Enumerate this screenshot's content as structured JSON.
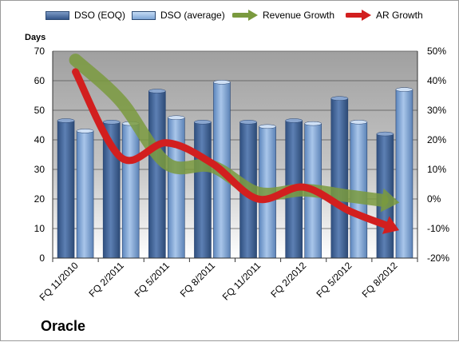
{
  "legend": {
    "dso_eoq": "DSO (EOQ)",
    "dso_avg": "DSO (average)",
    "revenue_growth": "Revenue Growth",
    "ar_growth": "AR Growth"
  },
  "axis_left_title": "Days",
  "company_label": "Oracle",
  "colors": {
    "bar_eoq": "#4a6fa5",
    "bar_avg": "#8fb3e0",
    "revenue": "#7a9a3e",
    "ar": "#d21f1f",
    "plot_top": "#a8a8a8",
    "plot_bottom": "#ffffff"
  },
  "chart_data": {
    "type": "bar",
    "categories": [
      "FQ 11/2010",
      "FQ 2/2011",
      "FQ 5/2011",
      "FQ 8/2011",
      "FQ 11/2011",
      "FQ 2/2012",
      "FQ 5/2012",
      "FQ 8/2012"
    ],
    "series": [
      {
        "name": "DSO (EOQ)",
        "type": "bar",
        "axis": "left",
        "values": [
          46.5,
          46,
          56.5,
          46,
          46,
          46.5,
          54,
          42
        ]
      },
      {
        "name": "DSO (average)",
        "type": "bar",
        "axis": "left",
        "values": [
          43,
          45.5,
          47.5,
          59.5,
          44.5,
          45.5,
          46,
          57
        ]
      },
      {
        "name": "Revenue Growth",
        "type": "line",
        "axis": "right",
        "values": [
          47,
          33,
          12,
          11,
          2,
          3,
          1,
          -1
        ]
      },
      {
        "name": "AR Growth",
        "type": "line",
        "axis": "right",
        "values": [
          43,
          14,
          19,
          12,
          0,
          4,
          -4,
          -10
        ]
      }
    ],
    "ylim_left": [
      0,
      70
    ],
    "yticks_left": [
      "0",
      "10",
      "20",
      "30",
      "40",
      "50",
      "60",
      "70"
    ],
    "ylim_right": [
      -20,
      50
    ],
    "yticks_right": [
      "-20%",
      "-10%",
      "0%",
      "10%",
      "20%",
      "30%",
      "40%",
      "50%"
    ],
    "ylabel_left": "Days",
    "grid": true,
    "legend_position": "top"
  }
}
